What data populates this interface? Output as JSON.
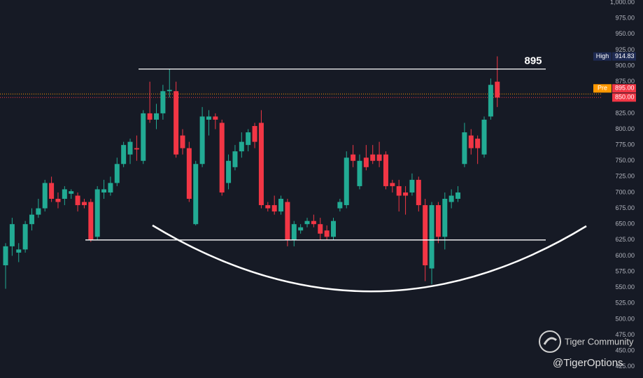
{
  "chart_data": {
    "type": "candlestick",
    "open": [
      585,
      615,
      605,
      610,
      650,
      665,
      675,
      715,
      690,
      690,
      698,
      695,
      685,
      685,
      630,
      700,
      700,
      715,
      745,
      760,
      770,
      750,
      825,
      815,
      825,
      860,
      860,
      790,
      770,
      650,
      745,
      815,
      820,
      810,
      715,
      740,
      765,
      775,
      805,
      810,
      680,
      680,
      670,
      685,
      625,
      640,
      650,
      655,
      650,
      640,
      630,
      675,
      680,
      760,
      710,
      755,
      760,
      760,
      760,
      715,
      710,
      700,
      700,
      720,
      680,
      580,
      680,
      630,
      685,
      690,
      745,
      790,
      785,
      760,
      820,
      875
    ],
    "high": [
      620,
      660,
      620,
      655,
      675,
      690,
      720,
      725,
      700,
      710,
      705,
      700,
      690,
      690,
      710,
      720,
      725,
      755,
      780,
      785,
      790,
      830,
      875,
      840,
      870,
      895,
      875,
      800,
      780,
      750,
      835,
      830,
      825,
      815,
      760,
      775,
      795,
      800,
      810,
      830,
      685,
      695,
      695,
      690,
      655,
      650,
      660,
      665,
      660,
      648,
      660,
      690,
      765,
      775,
      760,
      775,
      775,
      780,
      765,
      720,
      720,
      710,
      730,
      725,
      690,
      685,
      685,
      700,
      705,
      710,
      810,
      800,
      790,
      820,
      880,
      915
    ],
    "low": [
      548,
      600,
      590,
      605,
      640,
      660,
      670,
      685,
      675,
      680,
      690,
      670,
      675,
      622,
      625,
      690,
      695,
      710,
      740,
      745,
      750,
      745,
      810,
      800,
      815,
      850,
      755,
      760,
      685,
      648,
      740,
      790,
      800,
      695,
      705,
      735,
      755,
      765,
      770,
      675,
      670,
      665,
      665,
      615,
      615,
      635,
      645,
      645,
      625,
      625,
      625,
      670,
      675,
      740,
      705,
      735,
      745,
      740,
      705,
      700,
      670,
      665,
      695,
      670,
      560,
      555,
      620,
      610,
      675,
      685,
      740,
      760,
      745,
      755,
      815,
      835
    ],
    "close": [
      615,
      650,
      610,
      650,
      665,
      675,
      715,
      690,
      685,
      705,
      702,
      680,
      680,
      625,
      705,
      705,
      715,
      745,
      775,
      780,
      768,
      825,
      815,
      825,
      860,
      862,
      760,
      770,
      690,
      745,
      820,
      820,
      815,
      700,
      750,
      765,
      780,
      795,
      780,
      680,
      675,
      670,
      690,
      625,
      650,
      645,
      655,
      650,
      635,
      630,
      655,
      685,
      755,
      750,
      750,
      740,
      750,
      750,
      710,
      710,
      695,
      695,
      720,
      680,
      585,
      680,
      630,
      690,
      695,
      700,
      795,
      770,
      770,
      815,
      870,
      850
    ],
    "up_color": "#22ab94",
    "down_color": "#f23645",
    "ylim": [
      407,
      1004
    ],
    "yticks": [
      {
        "value": 425,
        "label": "425.00"
      },
      {
        "value": 450,
        "label": "450.00"
      },
      {
        "value": 475,
        "label": "475.00"
      },
      {
        "value": 500,
        "label": "500.00"
      },
      {
        "value": 525,
        "label": "525.00"
      },
      {
        "value": 550,
        "label": "550.00"
      },
      {
        "value": 575,
        "label": "575.00"
      },
      {
        "value": 600,
        "label": "600.00"
      },
      {
        "value": 625,
        "label": "625.00"
      },
      {
        "value": 650,
        "label": "650.00"
      },
      {
        "value": 675,
        "label": "675.00"
      },
      {
        "value": 700,
        "label": "700.00"
      },
      {
        "value": 725,
        "label": "725.00"
      },
      {
        "value": 750,
        "label": "750.00"
      },
      {
        "value": 775,
        "label": "775.00"
      },
      {
        "value": 800,
        "label": "800.00"
      },
      {
        "value": 825,
        "label": "825.00"
      },
      {
        "value": 850,
        "label": "850.00"
      },
      {
        "value": 875,
        "label": "875.00"
      },
      {
        "value": 900,
        "label": "900.00"
      },
      {
        "value": 925,
        "label": "925.00"
      },
      {
        "value": 950,
        "label": "950.00"
      },
      {
        "value": 975,
        "label": "975.00"
      },
      {
        "value": 1000,
        "label": "1,000.00"
      }
    ],
    "levels": [
      {
        "value": 895,
        "label": "895"
      },
      {
        "value": 625
      }
    ],
    "price_tags": [
      {
        "name": "High",
        "value": 914.83,
        "label": "914.83"
      },
      {
        "name": "Pre",
        "value": 895,
        "label": "895.00"
      },
      {
        "value": 850,
        "label": "850.00"
      }
    ],
    "watermark": [
      "Tiger Community",
      "@TigerOptions"
    ]
  }
}
